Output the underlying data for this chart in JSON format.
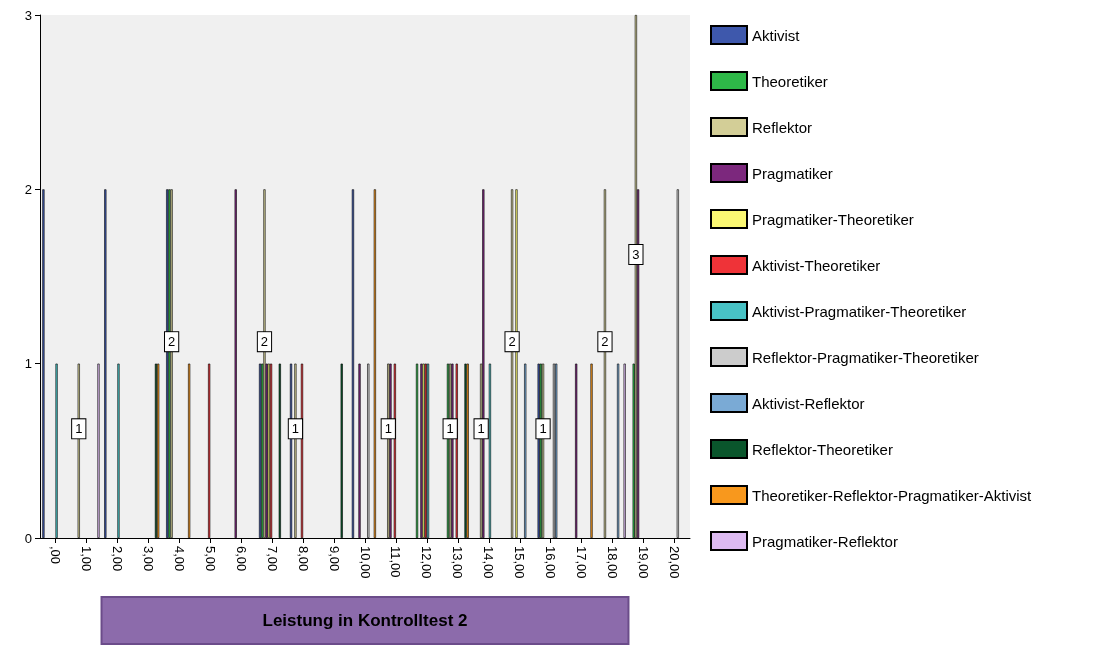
{
  "chart_data": {
    "type": "bar",
    "xlabel": "Leistung in Kontrolltest 2",
    "categories": [
      ",00",
      "1,00",
      "2,00",
      "3,00",
      "4,00",
      "5,00",
      "6,00",
      "7,00",
      "8,00",
      "9,00",
      "10,00",
      "11,00",
      "12,00",
      "13,00",
      "14,00",
      "15,00",
      "16,00",
      "17,00",
      "18,00",
      "19,00",
      "20,00"
    ],
    "ylim": [
      0,
      3
    ],
    "yticks": [
      0,
      1,
      2,
      3
    ],
    "grid": false,
    "legend": "right",
    "series": [
      {
        "name": "Aktivist",
        "color": "#3e58ac",
        "values": [
          2,
          null,
          2,
          null,
          2,
          null,
          null,
          1,
          1,
          null,
          2,
          null,
          null,
          null,
          null,
          null,
          1,
          null,
          null,
          null,
          null
        ]
      },
      {
        "name": "Theoretiker",
        "color": "#2eb848",
        "values": [
          null,
          null,
          null,
          null,
          2,
          null,
          null,
          1,
          null,
          null,
          null,
          null,
          1,
          1,
          null,
          null,
          1,
          null,
          null,
          1,
          null
        ]
      },
      {
        "name": "Reflektor",
        "color": "#d3ce97",
        "values": [
          null,
          1,
          null,
          null,
          2,
          null,
          null,
          2,
          1,
          null,
          null,
          1,
          null,
          1,
          1,
          2,
          1,
          null,
          2,
          3,
          null
        ],
        "value_labels": [
          null,
          "1",
          null,
          null,
          "2",
          null,
          null,
          "2",
          "1",
          null,
          null,
          "1",
          null,
          "1",
          "1",
          "2",
          "1",
          null,
          "2",
          "3",
          null
        ]
      },
      {
        "name": "Pragmatiker",
        "color": "#7c287d",
        "values": [
          null,
          null,
          null,
          null,
          null,
          null,
          2,
          1,
          null,
          null,
          1,
          1,
          1,
          1,
          2,
          null,
          null,
          1,
          null,
          2,
          null
        ]
      },
      {
        "name": "Pragmatiker-Theoretiker",
        "color": "#fbf873",
        "values": [
          null,
          null,
          null,
          null,
          null,
          null,
          null,
          1,
          null,
          null,
          null,
          null,
          1,
          null,
          null,
          2,
          null,
          null,
          null,
          null,
          null
        ]
      },
      {
        "name": "Aktivist-Theoretiker",
        "color": "#ef3338",
        "values": [
          null,
          null,
          null,
          null,
          null,
          1,
          null,
          1,
          1,
          null,
          null,
          1,
          1,
          1,
          null,
          null,
          null,
          null,
          null,
          null,
          null
        ]
      },
      {
        "name": "Aktivist-Pragmatiker-Theoretiker",
        "color": "#48c2c5",
        "values": [
          1,
          null,
          1,
          null,
          null,
          null,
          null,
          null,
          null,
          null,
          null,
          null,
          1,
          null,
          1,
          null,
          null,
          null,
          null,
          null,
          null
        ]
      },
      {
        "name": "Reflektor-Pragmatiker-Theoretiker",
        "color": "#cccccc",
        "values": [
          null,
          null,
          null,
          null,
          null,
          null,
          null,
          null,
          null,
          null,
          1,
          null,
          null,
          null,
          null,
          null,
          1,
          null,
          null,
          null,
          2
        ]
      },
      {
        "name": "Aktivist-Reflektor",
        "color": "#7aaad5",
        "values": [
          null,
          null,
          null,
          null,
          null,
          null,
          null,
          null,
          null,
          null,
          null,
          null,
          null,
          null,
          null,
          1,
          1,
          null,
          1,
          null,
          null
        ]
      },
      {
        "name": "Reflektor-Theoretiker",
        "color": "#0a562c",
        "values": [
          null,
          null,
          null,
          1,
          null,
          null,
          null,
          1,
          null,
          1,
          null,
          null,
          null,
          1,
          null,
          null,
          null,
          null,
          null,
          null,
          null
        ]
      },
      {
        "name": "Theoretiker-Reflektor-Pragmatiker-Aktivist",
        "color": "#f8981d",
        "values": [
          null,
          null,
          null,
          1,
          1,
          null,
          null,
          null,
          null,
          null,
          2,
          null,
          null,
          1,
          null,
          null,
          null,
          1,
          null,
          null,
          null
        ]
      },
      {
        "name": "Pragmatiker-Reflektor",
        "color": "#ddbaf1",
        "values": [
          null,
          1,
          null,
          null,
          null,
          null,
          null,
          null,
          null,
          null,
          null,
          null,
          null,
          null,
          null,
          null,
          null,
          null,
          1,
          null,
          null
        ]
      }
    ]
  }
}
